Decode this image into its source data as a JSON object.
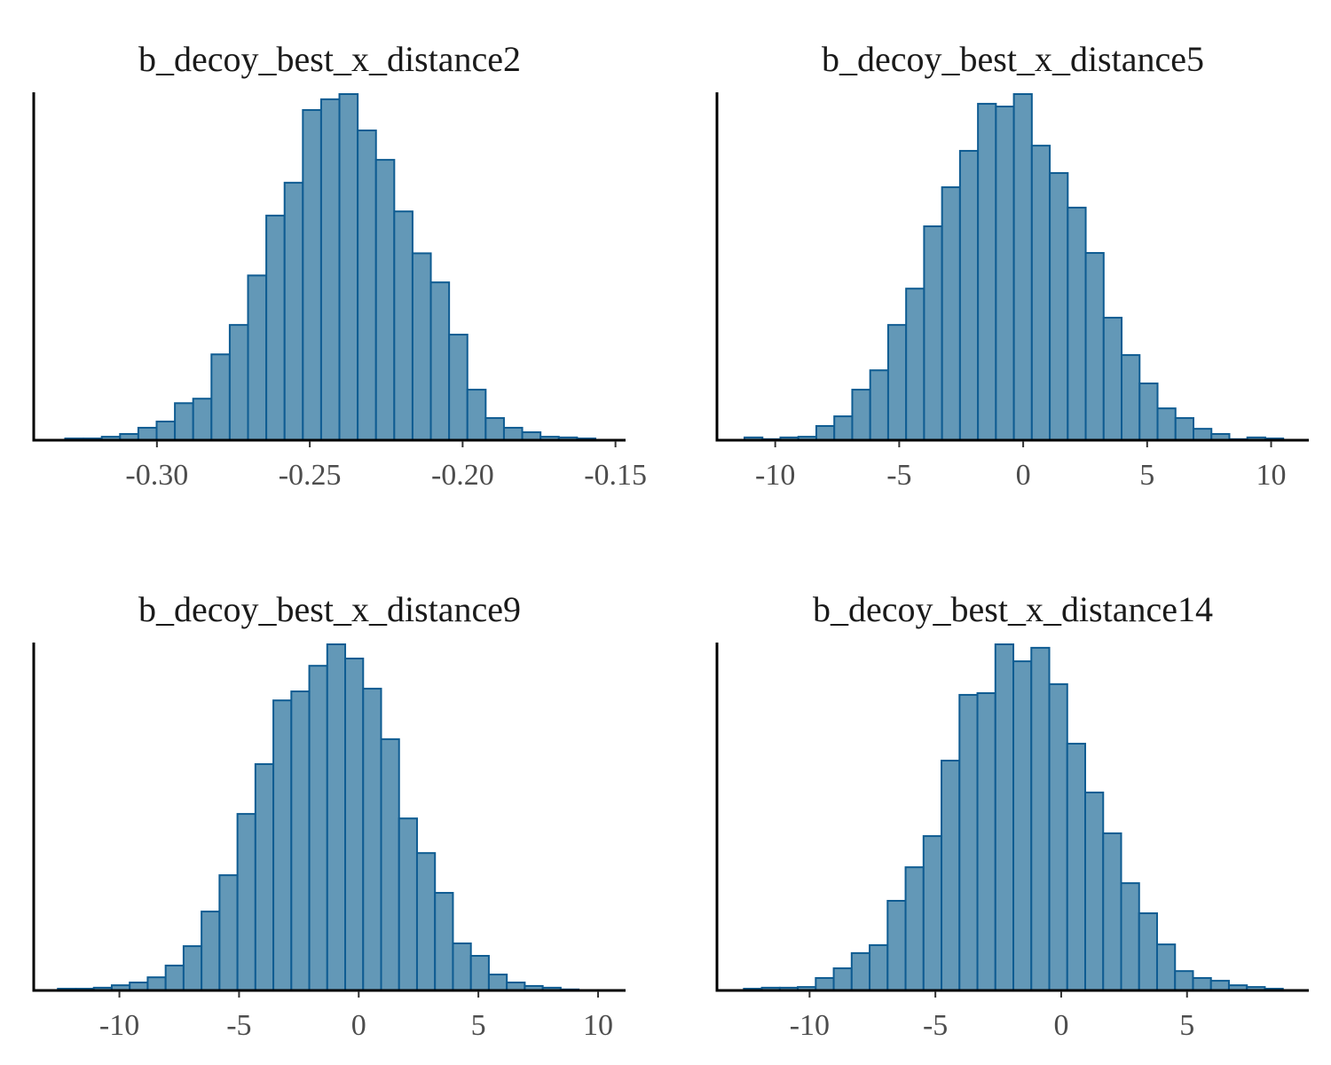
{
  "colors": {
    "bar_fill": "#6398b7",
    "bar_edge": "#0f5c92",
    "axis": "#000000",
    "tick_text": "#4d4d4d",
    "title_text": "#1a1a1a"
  },
  "chart_data": [
    {
      "type": "bar",
      "kind": "histogram",
      "title": "b_decoy_best_x_distance2",
      "xlabel": "",
      "ylabel": "",
      "xlim": [
        -0.3403,
        -0.1467
      ],
      "ylim": [
        0,
        1
      ],
      "xticks": [
        -0.3,
        -0.25,
        -0.2,
        -0.15
      ],
      "xtick_labels": [
        "-0.30",
        "-0.25",
        "-0.20",
        "-0.15"
      ],
      "y_axis_ticks": false,
      "grid": false,
      "bins": {
        "start": -0.33,
        "width": 0.00598,
        "values": [
          0.005,
          0.005,
          0.01,
          0.018,
          0.036,
          0.054,
          0.107,
          0.12,
          0.248,
          0.333,
          0.476,
          0.649,
          0.744,
          0.954,
          0.985,
          1.0,
          0.895,
          0.81,
          0.661,
          0.54,
          0.456,
          0.305,
          0.146,
          0.064,
          0.036,
          0.023,
          0.01,
          0.008,
          0.005
        ]
      }
    },
    {
      "type": "bar",
      "kind": "histogram",
      "title": "b_decoy_best_x_distance5",
      "xlabel": "",
      "ylabel": "",
      "xlim": [
        -12.35,
        11.52
      ],
      "ylim": [
        0,
        1
      ],
      "xticks": [
        -10,
        -5,
        0,
        5,
        10
      ],
      "xtick_labels": [
        "-10",
        "-5",
        "0",
        "5",
        "10"
      ],
      "y_axis_ticks": false,
      "grid": false,
      "bins": {
        "start": -11.24,
        "width": 0.7243,
        "values": [
          0.008,
          0.003,
          0.008,
          0.01,
          0.041,
          0.069,
          0.146,
          0.202,
          0.333,
          0.438,
          0.618,
          0.731,
          0.836,
          0.972,
          0.964,
          1.0,
          0.851,
          0.772,
          0.672,
          0.541,
          0.354,
          0.246,
          0.164,
          0.092,
          0.064,
          0.033,
          0.018,
          0.003,
          0.008,
          0.005
        ]
      }
    },
    {
      "type": "bar",
      "kind": "histogram",
      "title": "b_decoy_best_x_distance9",
      "xlabel": "",
      "ylabel": "",
      "xlim": [
        -13.58,
        11.15
      ],
      "ylim": [
        0,
        1
      ],
      "xticks": [
        -10,
        -5,
        0,
        5,
        10
      ],
      "xtick_labels": [
        "-10",
        "-5",
        "0",
        "5",
        "10"
      ],
      "y_axis_ticks": false,
      "grid": false,
      "bins": {
        "start": -12.57,
        "width": 0.7503,
        "values": [
          0.005,
          0.005,
          0.008,
          0.015,
          0.023,
          0.038,
          0.072,
          0.128,
          0.228,
          0.333,
          0.51,
          0.654,
          0.838,
          0.864,
          0.938,
          1.0,
          0.959,
          0.872,
          0.726,
          0.497,
          0.397,
          0.282,
          0.136,
          0.1,
          0.046,
          0.023,
          0.013,
          0.008,
          0.003
        ]
      }
    },
    {
      "type": "bar",
      "kind": "histogram",
      "title": "b_decoy_best_x_distance14",
      "xlabel": "",
      "ylabel": "",
      "xlim": [
        -13.68,
        9.84
      ],
      "ylim": [
        0,
        1
      ],
      "xticks": [
        -10,
        -5,
        0,
        5
      ],
      "xtick_labels": [
        "-10",
        "-5",
        "0",
        "5"
      ],
      "y_axis_ticks": false,
      "grid": false,
      "bins": {
        "start": -12.61,
        "width": 0.7139,
        "values": [
          0.005,
          0.008,
          0.008,
          0.01,
          0.036,
          0.064,
          0.108,
          0.131,
          0.259,
          0.356,
          0.446,
          0.664,
          0.854,
          0.859,
          1.0,
          0.951,
          0.99,
          0.885,
          0.713,
          0.572,
          0.454,
          0.31,
          0.223,
          0.133,
          0.056,
          0.036,
          0.028,
          0.015,
          0.01,
          0.005
        ]
      }
    }
  ]
}
